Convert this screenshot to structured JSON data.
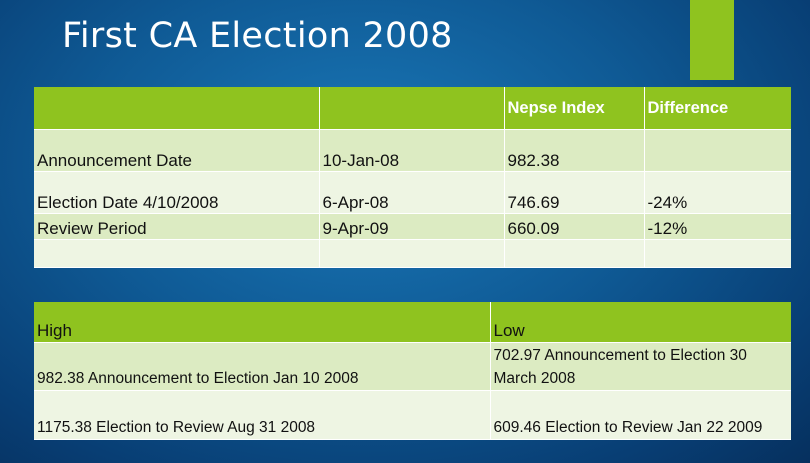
{
  "title": "First CA Election 2008",
  "colors": {
    "accent": "#8fc31f",
    "row_dark": "#dcebc2",
    "row_light": "#eef5e3"
  },
  "table1": {
    "headers": [
      "",
      "",
      "Nepse Index",
      "Difference"
    ],
    "rows": [
      [
        "Announcement Date",
        "10-Jan-08",
        "982.38",
        ""
      ],
      [
        "Election Date 4/10/2008",
        "6-Apr-08",
        "746.69",
        "-24%"
      ],
      [
        "Review Period",
        "9-Apr-09",
        "660.09",
        "-12%"
      ],
      [
        "",
        "",
        "",
        ""
      ]
    ]
  },
  "table2": {
    "headers": [
      "High",
      "Low"
    ],
    "rows": [
      [
        "982.38 Announcement to Election Jan 10 2008",
        "702.97 Announcement to Election 30 March 2008"
      ],
      [
        "1175.38 Election to Review  Aug 31 2008",
        "609.46 Election to Review Jan 22 2009"
      ]
    ]
  }
}
